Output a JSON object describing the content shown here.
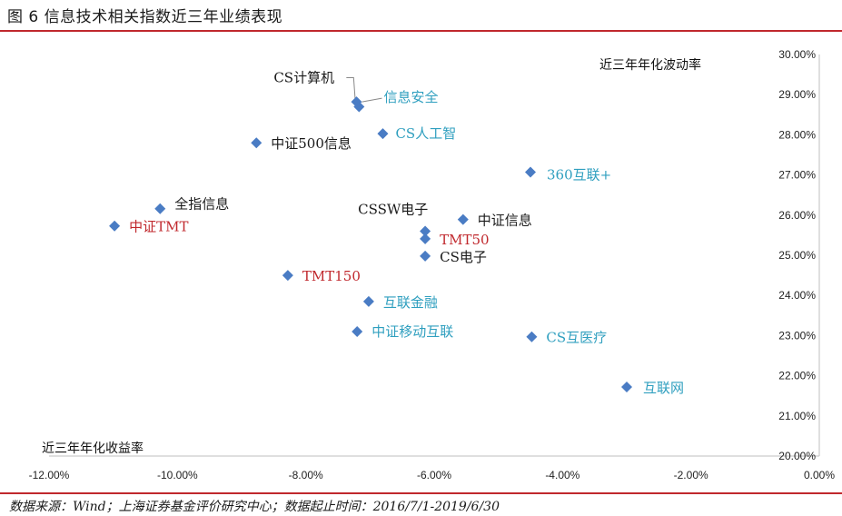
{
  "title": "图 6  信息技术相关指数近三年业绩表现",
  "footer": "数据来源：Wind；上海证券基金评价研究中心；数据起止时间：2016/7/1-2019/6/30",
  "colors": {
    "rule": "#c0282d",
    "marker": "#4a7cc4",
    "label_black": "#1a1a1a",
    "label_blue": "#2f9fbf",
    "label_red": "#c0282d"
  },
  "chart_data": {
    "type": "scatter",
    "xlabel": "近三年年化收益率",
    "ylabel": "近三年年化波动率",
    "xlim": [
      -0.12,
      0.0
    ],
    "ylim": [
      0.2,
      0.3
    ],
    "x_ticks": [
      "-12.00%",
      "-10.00%",
      "-8.00%",
      "-6.00%",
      "-4.00%",
      "-2.00%",
      "0.00%"
    ],
    "y_ticks": [
      "20.00%",
      "21.00%",
      "22.00%",
      "23.00%",
      "24.00%",
      "25.00%",
      "26.00%",
      "27.00%",
      "28.00%",
      "29.00%",
      "30.00%"
    ],
    "points": [
      {
        "name": "CS计算机",
        "x": -0.0717,
        "y": 0.287,
        "color": "label_black"
      },
      {
        "name": "信息安全",
        "x": -0.0721,
        "y": 0.2882,
        "color": "label_blue"
      },
      {
        "name": "CS人工智",
        "x": -0.068,
        "y": 0.2803,
        "color": "label_blue"
      },
      {
        "name": "中证500信息",
        "x": -0.0877,
        "y": 0.278,
        "color": "label_black"
      },
      {
        "name": "360互联+",
        "x": -0.045,
        "y": 0.2707,
        "color": "label_blue"
      },
      {
        "name": "全指信息",
        "x": -0.1027,
        "y": 0.2616,
        "color": "label_black"
      },
      {
        "name": "中证TMT",
        "x": -0.1098,
        "y": 0.2573,
        "color": "label_red"
      },
      {
        "name": "CSSW电子",
        "x": -0.0614,
        "y": 0.256,
        "color": "label_black"
      },
      {
        "name": "中证信息",
        "x": -0.0555,
        "y": 0.2589,
        "color": "label_black"
      },
      {
        "name": "TMT50",
        "x": -0.0614,
        "y": 0.2541,
        "color": "label_red"
      },
      {
        "name": "CS电子",
        "x": -0.0614,
        "y": 0.2498,
        "color": "label_black"
      },
      {
        "name": "TMT150",
        "x": -0.0828,
        "y": 0.245,
        "color": "label_red"
      },
      {
        "name": "互联金融",
        "x": -0.0702,
        "y": 0.2385,
        "color": "label_blue"
      },
      {
        "name": "中证移动互联",
        "x": -0.072,
        "y": 0.231,
        "color": "label_blue"
      },
      {
        "name": "CS互医疗",
        "x": -0.0448,
        "y": 0.2297,
        "color": "label_blue"
      },
      {
        "name": "互联网",
        "x": -0.03,
        "y": 0.2172,
        "color": "label_blue"
      }
    ]
  }
}
